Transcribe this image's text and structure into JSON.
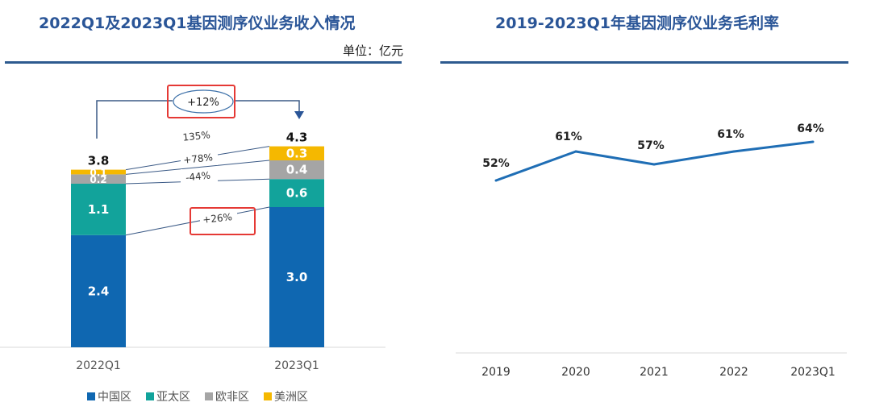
{
  "chart_data": [
    {
      "type": "bar",
      "stacked": true,
      "title": "2022Q1及2023Q1基因测序仪业务收入情况",
      "unit_label": "单位：亿元",
      "categories": [
        "2022Q1",
        "2023Q1"
      ],
      "series": [
        {
          "name": "中国区",
          "color": "#0f67b1",
          "values": [
            2.4,
            3.0
          ],
          "labels": [
            "2.4",
            "3.0"
          ]
        },
        {
          "name": "亚太区",
          "color": "#12a39b",
          "values": [
            1.1,
            0.6
          ],
          "labels": [
            "1.1",
            "0.6"
          ]
        },
        {
          "name": "欧非区",
          "color": "#a5a5a5",
          "values": [
            0.2,
            0.4
          ],
          "labels": [
            "0.2",
            "0.4"
          ]
        },
        {
          "name": "美洲区",
          "color": "#f5b800",
          "values": [
            0.1,
            0.3
          ],
          "labels": [
            "0.1",
            "0.3"
          ]
        }
      ],
      "totals": [
        3.8,
        4.3
      ],
      "total_labels": [
        "3.8",
        "4.3"
      ],
      "total_growth": "+12%",
      "segment_growth": [
        {
          "series": "中国区",
          "label": "+26%",
          "highlighted": true
        },
        {
          "series": "亚太区",
          "label": "-44%"
        },
        {
          "series": "欧非区",
          "label": "+78%"
        },
        {
          "series": "美洲区",
          "label": "135%"
        }
      ],
      "legend_position": "bottom",
      "grid": false
    },
    {
      "type": "line",
      "title": "2019-2023Q1年基因测序仪业务毛利率",
      "categories": [
        "2019",
        "2020",
        "2021",
        "2022",
        "2023Q1"
      ],
      "series": [
        {
          "name": "毛利率",
          "color": "#1f6eb5",
          "values": [
            52,
            61,
            57,
            61,
            64
          ],
          "labels": [
            "52%",
            "61%",
            "57%",
            "61%",
            "64%"
          ]
        }
      ],
      "ylabel": "",
      "xlabel": "",
      "grid": false
    }
  ],
  "legend_items": [
    "中国区",
    "亚太区",
    "欧非区",
    "美洲区"
  ]
}
